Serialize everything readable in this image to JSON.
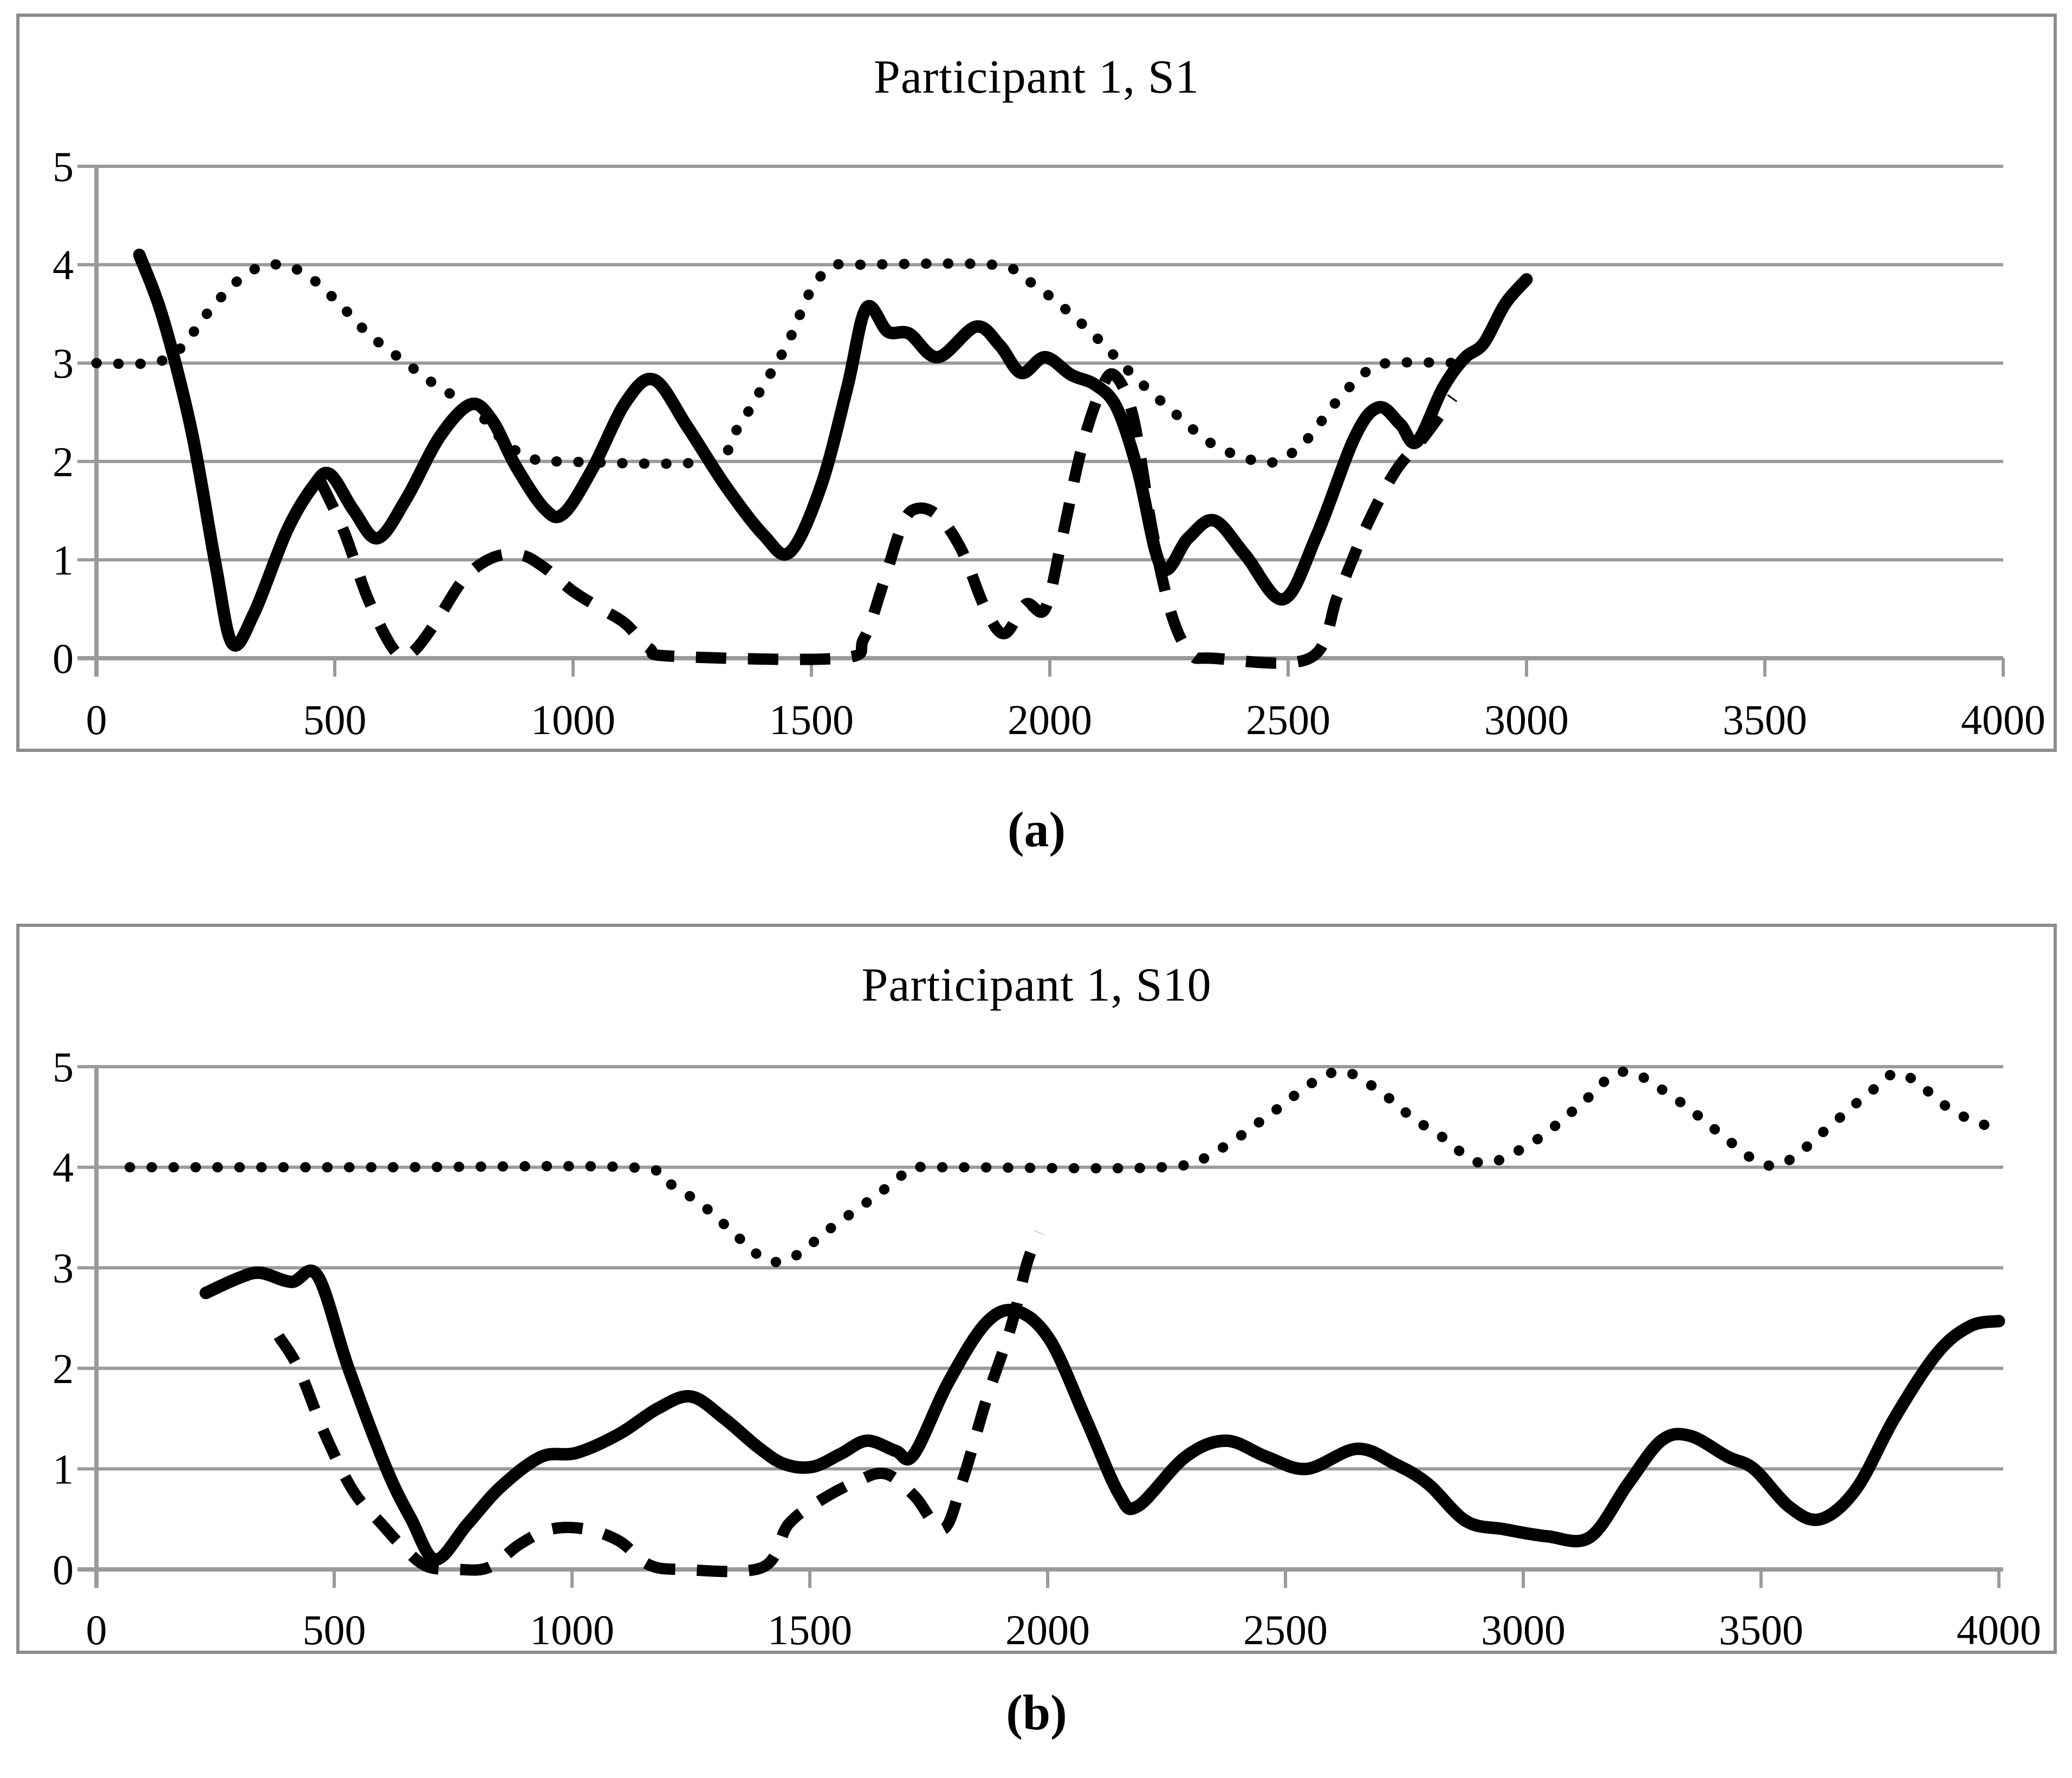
{
  "colors": {
    "line": "#000000",
    "grid": "#9a9a9a",
    "frame": "#8c8c8c",
    "text": "#000000",
    "background": "#ffffff"
  },
  "chart_data": [
    {
      "type": "line",
      "title": "Participant 1, S1",
      "caption": "(a)",
      "xlabel": "",
      "ylabel": "",
      "xlim": [
        0,
        4000
      ],
      "ylim": [
        0,
        5
      ],
      "xticks": [
        0,
        500,
        1000,
        1500,
        2000,
        2500,
        3000,
        3500,
        4000
      ],
      "yticks": [
        0,
        1,
        2,
        3,
        4,
        5
      ],
      "grid": true,
      "legend_position": "none",
      "series": [
        {
          "name": "dotted-series",
          "style": "dotted",
          "points": [
            [
              0,
              3
            ],
            [
              110,
              3
            ],
            [
              170,
              3.12
            ],
            [
              240,
              3.55
            ],
            [
              300,
              3.85
            ],
            [
              360,
              4.0
            ],
            [
              430,
              3.93
            ],
            [
              500,
              3.65
            ],
            [
              570,
              3.3
            ],
            [
              650,
              3.0
            ],
            [
              720,
              2.75
            ],
            [
              790,
              2.55
            ],
            [
              860,
              2.18
            ],
            [
              920,
              2.02
            ],
            [
              970,
              2.0
            ],
            [
              1280,
              2.0
            ],
            [
              1340,
              2.3
            ],
            [
              1400,
              2.78
            ],
            [
              1450,
              3.2
            ],
            [
              1500,
              3.75
            ],
            [
              1545,
              3.98
            ],
            [
              1600,
              4.0
            ],
            [
              1880,
              4.0
            ],
            [
              1950,
              3.85
            ],
            [
              2020,
              3.6
            ],
            [
              2100,
              3.25
            ],
            [
              2180,
              2.85
            ],
            [
              2260,
              2.5
            ],
            [
              2340,
              2.18
            ],
            [
              2420,
              2.02
            ],
            [
              2475,
              2.0
            ],
            [
              2535,
              2.2
            ],
            [
              2600,
              2.6
            ],
            [
              2660,
              2.9
            ],
            [
              2710,
              3.0
            ],
            [
              2870,
              3.0
            ]
          ]
        },
        {
          "name": "dashed-series",
          "style": "dashed",
          "points": [
            [
              470,
              1.8
            ],
            [
              520,
              1.28
            ],
            [
              570,
              0.6
            ],
            [
              625,
              0.08
            ],
            [
              660,
              0.05
            ],
            [
              710,
              0.35
            ],
            [
              770,
              0.8
            ],
            [
              830,
              1.02
            ],
            [
              890,
              1.05
            ],
            [
              940,
              0.92
            ],
            [
              1000,
              0.68
            ],
            [
              1060,
              0.5
            ],
            [
              1110,
              0.35
            ],
            [
              1160,
              0.1
            ],
            [
              1210,
              0.02
            ],
            [
              1560,
              0.0
            ],
            [
              1610,
              0.2
            ],
            [
              1650,
              0.75
            ],
            [
              1690,
              1.35
            ],
            [
              1720,
              1.52
            ],
            [
              1765,
              1.45
            ],
            [
              1815,
              1.1
            ],
            [
              1865,
              0.5
            ],
            [
              1905,
              0.25
            ],
            [
              1950,
              0.55
            ],
            [
              1990,
              0.5
            ],
            [
              2025,
              1.2
            ],
            [
              2065,
              2.1
            ],
            [
              2105,
              2.7
            ],
            [
              2135,
              2.88
            ],
            [
              2175,
              2.45
            ],
            [
              2215,
              1.3
            ],
            [
              2255,
              0.45
            ],
            [
              2295,
              0.05
            ],
            [
              2340,
              0.0
            ],
            [
              2545,
              0.0
            ],
            [
              2605,
              0.65
            ],
            [
              2665,
              1.35
            ],
            [
              2725,
              1.9
            ],
            [
              2785,
              2.25
            ],
            [
              2845,
              2.65
            ]
          ]
        },
        {
          "name": "solid-series",
          "style": "solid",
          "points": [
            [
              90,
              4.1
            ],
            [
              140,
              3.45
            ],
            [
              200,
              2.3
            ],
            [
              250,
              0.95
            ],
            [
              285,
              0.15
            ],
            [
              330,
              0.45
            ],
            [
              400,
              1.3
            ],
            [
              455,
              1.75
            ],
            [
              490,
              1.87
            ],
            [
              540,
              1.5
            ],
            [
              590,
              1.22
            ],
            [
              650,
              1.62
            ],
            [
              720,
              2.25
            ],
            [
              785,
              2.58
            ],
            [
              830,
              2.42
            ],
            [
              880,
              1.95
            ],
            [
              940,
              1.52
            ],
            [
              980,
              1.47
            ],
            [
              1040,
              1.92
            ],
            [
              1110,
              2.6
            ],
            [
              1170,
              2.83
            ],
            [
              1240,
              2.35
            ],
            [
              1320,
              1.75
            ],
            [
              1400,
              1.25
            ],
            [
              1455,
              1.08
            ],
            [
              1520,
              1.75
            ],
            [
              1575,
              2.75
            ],
            [
              1615,
              3.56
            ],
            [
              1660,
              3.32
            ],
            [
              1705,
              3.3
            ],
            [
              1765,
              3.06
            ],
            [
              1845,
              3.37
            ],
            [
              1895,
              3.18
            ],
            [
              1940,
              2.9
            ],
            [
              1990,
              3.06
            ],
            [
              2045,
              2.88
            ],
            [
              2095,
              2.78
            ],
            [
              2140,
              2.55
            ],
            [
              2185,
              1.9
            ],
            [
              2235,
              0.92
            ],
            [
              2290,
              1.22
            ],
            [
              2345,
              1.4
            ],
            [
              2410,
              1.05
            ],
            [
              2490,
              0.6
            ],
            [
              2560,
              1.25
            ],
            [
              2640,
              2.25
            ],
            [
              2690,
              2.55
            ],
            [
              2735,
              2.38
            ],
            [
              2770,
              2.2
            ],
            [
              2825,
              2.75
            ],
            [
              2870,
              3.05
            ],
            [
              2910,
              3.2
            ],
            [
              2955,
              3.6
            ],
            [
              3000,
              3.85
            ]
          ]
        }
      ]
    },
    {
      "type": "line",
      "title": "Participant 1, S10",
      "caption": "(b)",
      "xlabel": "",
      "ylabel": "",
      "xlim": [
        0,
        4000
      ],
      "ylim": [
        0,
        5
      ],
      "xticks": [
        0,
        500,
        1000,
        1500,
        2000,
        2500,
        3000,
        3500,
        4000
      ],
      "yticks": [
        0,
        1,
        2,
        3,
        4,
        5
      ],
      "grid": true,
      "legend_position": "none",
      "series": [
        {
          "name": "dotted-series",
          "style": "dotted",
          "points": [
            [
              70,
              4.0
            ],
            [
              600,
              4.0
            ],
            [
              1120,
              4.0
            ],
            [
              1200,
              3.85
            ],
            [
              1280,
              3.6
            ],
            [
              1350,
              3.3
            ],
            [
              1412,
              3.07
            ],
            [
              1470,
              3.12
            ],
            [
              1540,
              3.38
            ],
            [
              1640,
              3.72
            ],
            [
              1715,
              3.98
            ],
            [
              1780,
              4.0
            ],
            [
              2240,
              4.0
            ],
            [
              2350,
              4.15
            ],
            [
              2460,
              4.5
            ],
            [
              2560,
              4.85
            ],
            [
              2625,
              4.95
            ],
            [
              2700,
              4.75
            ],
            [
              2765,
              4.5
            ],
            [
              2830,
              4.3
            ],
            [
              2915,
              4.04
            ],
            [
              3020,
              4.25
            ],
            [
              3115,
              4.6
            ],
            [
              3210,
              4.95
            ],
            [
              3320,
              4.68
            ],
            [
              3410,
              4.35
            ],
            [
              3495,
              4.05
            ],
            [
              3555,
              4.06
            ],
            [
              3650,
              4.43
            ],
            [
              3730,
              4.75
            ],
            [
              3795,
              4.93
            ],
            [
              3900,
              4.57
            ],
            [
              3970,
              4.42
            ],
            [
              4000,
              4.37
            ]
          ]
        },
        {
          "name": "dashed-series",
          "style": "dashed",
          "points": [
            [
              383,
              2.32
            ],
            [
              425,
              2.0
            ],
            [
              480,
              1.35
            ],
            [
              540,
              0.78
            ],
            [
              600,
              0.45
            ],
            [
              645,
              0.22
            ],
            [
              695,
              0.03
            ],
            [
              760,
              0.0
            ],
            [
              825,
              0.02
            ],
            [
              890,
              0.25
            ],
            [
              955,
              0.4
            ],
            [
              1030,
              0.4
            ],
            [
              1100,
              0.28
            ],
            [
              1160,
              0.05
            ],
            [
              1230,
              0.0
            ],
            [
              1400,
              0.02
            ],
            [
              1455,
              0.45
            ],
            [
              1520,
              0.68
            ],
            [
              1600,
              0.88
            ],
            [
              1660,
              0.95
            ],
            [
              1720,
              0.73
            ],
            [
              1780,
              0.4
            ],
            [
              1822,
              0.9
            ],
            [
              1872,
              1.7
            ],
            [
              1922,
              2.4
            ],
            [
              1957,
              3.05
            ],
            [
              1982,
              3.35
            ]
          ]
        },
        {
          "name": "solid-series",
          "style": "solid",
          "points": [
            [
              230,
              2.75
            ],
            [
              300,
              2.9
            ],
            [
              345,
              2.95
            ],
            [
              410,
              2.86
            ],
            [
              465,
              2.92
            ],
            [
              530,
              2.0
            ],
            [
              610,
              1.0
            ],
            [
              662,
              0.5
            ],
            [
              713,
              0.1
            ],
            [
              780,
              0.45
            ],
            [
              850,
              0.82
            ],
            [
              935,
              1.12
            ],
            [
              1010,
              1.16
            ],
            [
              1100,
              1.35
            ],
            [
              1180,
              1.6
            ],
            [
              1250,
              1.72
            ],
            [
              1320,
              1.5
            ],
            [
              1390,
              1.22
            ],
            [
              1445,
              1.05
            ],
            [
              1505,
              1.02
            ],
            [
              1565,
              1.15
            ],
            [
              1620,
              1.28
            ],
            [
              1680,
              1.18
            ],
            [
              1718,
              1.14
            ],
            [
              1790,
              1.85
            ],
            [
              1870,
              2.45
            ],
            [
              1935,
              2.57
            ],
            [
              2005,
              2.28
            ],
            [
              2080,
              1.5
            ],
            [
              2150,
              0.75
            ],
            [
              2190,
              0.63
            ],
            [
              2290,
              1.12
            ],
            [
              2375,
              1.28
            ],
            [
              2460,
              1.12
            ],
            [
              2545,
              1.0
            ],
            [
              2650,
              1.2
            ],
            [
              2730,
              1.05
            ],
            [
              2800,
              0.85
            ],
            [
              2880,
              0.48
            ],
            [
              2960,
              0.4
            ],
            [
              3050,
              0.33
            ],
            [
              3140,
              0.32
            ],
            [
              3220,
              0.85
            ],
            [
              3290,
              1.28
            ],
            [
              3350,
              1.33
            ],
            [
              3430,
              1.12
            ],
            [
              3485,
              1.0
            ],
            [
              3560,
              0.62
            ],
            [
              3625,
              0.5
            ],
            [
              3700,
              0.8
            ],
            [
              3780,
              1.5
            ],
            [
              3870,
              2.15
            ],
            [
              3940,
              2.42
            ],
            [
              4000,
              2.47
            ]
          ]
        }
      ]
    }
  ]
}
